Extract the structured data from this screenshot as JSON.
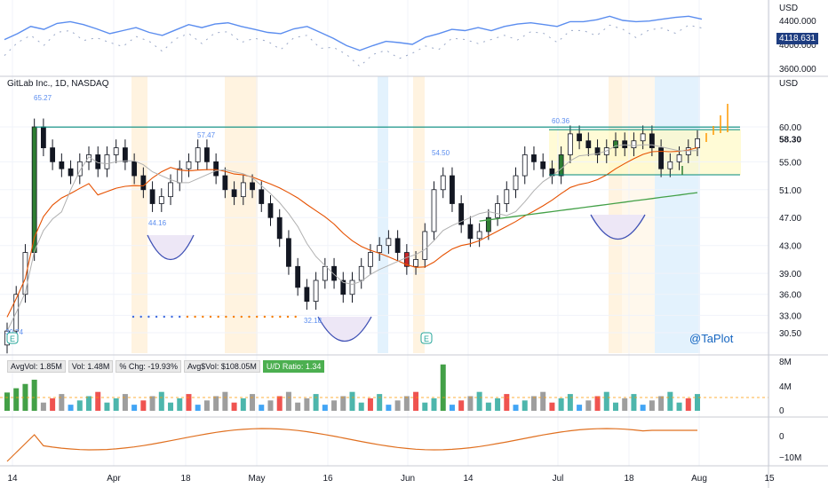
{
  "title": "GitLab Inc., 1D, NASDAQ",
  "brand": "@TaPlot",
  "top_panel": {
    "currency": "USD",
    "ticks": [
      "4400.000",
      "4000.000",
      "3600.000"
    ],
    "tick_values": [
      4400,
      4000,
      3600
    ],
    "last_value": "4118.631"
  },
  "main_panel": {
    "currency": "USD",
    "ticks": [
      "60.00",
      "55.00",
      "51.00",
      "47.00",
      "43.00",
      "39.00",
      "36.00",
      "33.00",
      "30.50"
    ],
    "tick_values": [
      60,
      55,
      51,
      47,
      43,
      39,
      36,
      33,
      30.5
    ],
    "last_price": "58.30",
    "annotations": [
      "65.27",
      "57.47",
      "44.16",
      "32.18",
      "54.50",
      "60.36",
      "30.74"
    ]
  },
  "x_axis": [
    "14",
    "Apr",
    "18",
    "May",
    "16",
    "Jun",
    "14",
    "Jul",
    "18",
    "Aug",
    "15"
  ],
  "volume_panel": {
    "ticks": [
      "8M",
      "4M",
      "0"
    ],
    "badges": [
      {
        "text": "AvgVol: 1.85M",
        "hl": false
      },
      {
        "text": "Vol: 1.48M",
        "hl": false
      },
      {
        "text": "% Chg: -19.93%",
        "hl": false
      },
      {
        "text": "Avg$Vol: $108.05M",
        "hl": false
      },
      {
        "text": "U/D Ratio: 1.34",
        "hl": true
      }
    ]
  },
  "osc_panel": {
    "ticks": [
      "0",
      "−10M"
    ]
  },
  "colors": {
    "up": "#ffffff",
    "down": "#131722",
    "green": "#2e7d32",
    "red": "#c62828",
    "ma_red": "#e65100",
    "ma_green": "#43a047",
    "ma_gray": "#b0b0b0",
    "channel": "#00897b",
    "index_line": "#5b8def",
    "osc_line": "#e07020"
  },
  "chart_data": {
    "type": "candlestick",
    "series_close_path": [
      30.74,
      36,
      42,
      60,
      57,
      55,
      54,
      53,
      55,
      56,
      54,
      56,
      57,
      55,
      53,
      51,
      49,
      50,
      52,
      54,
      55,
      57,
      55,
      53,
      51,
      50,
      52,
      51,
      49,
      47,
      44,
      40,
      37,
      35,
      38,
      40,
      38,
      36,
      38,
      40,
      42,
      43,
      44,
      42,
      40,
      41,
      45,
      51,
      53,
      49,
      46,
      44,
      45,
      47,
      49,
      51,
      53,
      56,
      55,
      54,
      53,
      56,
      59,
      58,
      57,
      56,
      57,
      58,
      57,
      58,
      59,
      57,
      54,
      55,
      56,
      57,
      58.3
    ]
  }
}
